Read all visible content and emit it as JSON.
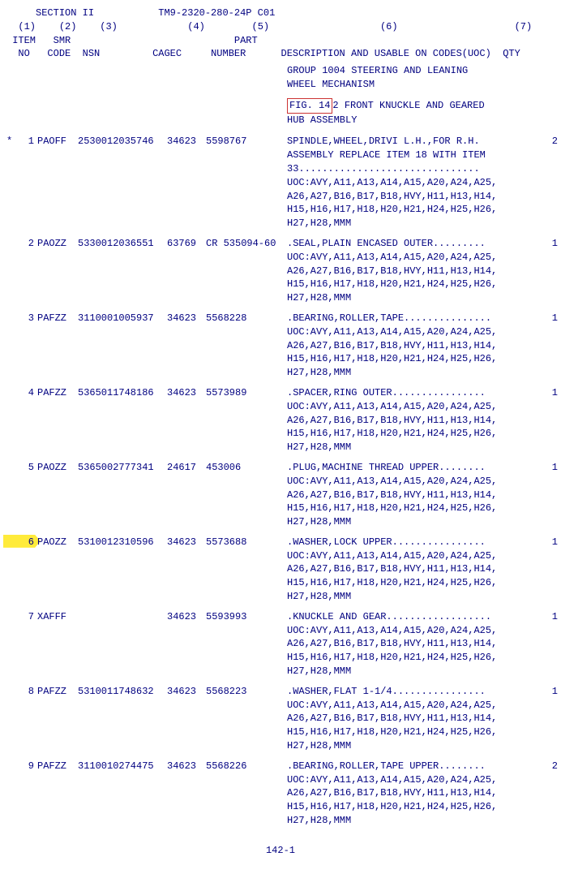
{
  "doc": {
    "section": "SECTION II",
    "tm": "TM9-2320-280-24P C01",
    "page": "142-1"
  },
  "columns": {
    "c1": "(1)",
    "c2": "(2)",
    "c3": "(3)",
    "c4": "(4)",
    "c5": "(5)",
    "c6": "(6)",
    "c7": "(7)",
    "h_item": "ITEM",
    "h_smr": "SMR",
    "h_part": "PART",
    "h_no": "NO",
    "h_code": "CODE",
    "h_nsn": "NSN",
    "h_cagec": "CAGEC",
    "h_number": "NUMBER",
    "h_desc": "DESCRIPTION AND USABLE ON CODES(UOC)",
    "h_qty": "QTY"
  },
  "group": {
    "l1": "GROUP 1004 STEERING AND LEANING",
    "l2": "WHEEL MECHANISM"
  },
  "fig": {
    "box": "FIG. 14",
    "rest": "2 FRONT KNUCKLE AND GEARED",
    "l2": "HUB ASSEMBLY"
  },
  "uoc_block": "UOC:AVY,A11,A13,A14,A15,A20,A24,A25,\nA26,A27,B16,B17,B18,HVY,H11,H13,H14,\nH15,H16,H17,H18,H20,H21,H24,H25,H26,\nH27,H28,MMM",
  "items": [
    {
      "star": "*",
      "no": "1",
      "smr": "PAOFF",
      "nsn": "2530012035746",
      "cagec": "34623",
      "part": "5598767",
      "desc": "SPINDLE,WHEEL,DRIVI  L.H.,FOR R.H.\nASSEMBLY REPLACE ITEM 18 WITH ITEM\n33...............................",
      "qty": "2",
      "hl": false
    },
    {
      "star": "",
      "no": "2",
      "smr": "PAOZZ",
      "nsn": "5330012036551",
      "cagec": "63769",
      "part": "CR 535094-60",
      "desc": ".SEAL,PLAIN ENCASED  OUTER.........",
      "qty": "1",
      "hl": false
    },
    {
      "star": "",
      "no": "3",
      "smr": "PAFZZ",
      "nsn": "3110001005937",
      "cagec": "34623",
      "part": "5568228",
      "desc": ".BEARING,ROLLER,TAPE...............",
      "qty": "1",
      "hl": false
    },
    {
      "star": "",
      "no": "4",
      "smr": "PAFZZ",
      "nsn": "5365011748186",
      "cagec": "34623",
      "part": "5573989",
      "desc": ".SPACER,RING  OUTER................",
      "qty": "1",
      "hl": false
    },
    {
      "star": "",
      "no": "5",
      "smr": "PAOZZ",
      "nsn": "5365002777341",
      "cagec": "24617",
      "part": "453006",
      "desc": ".PLUG,MACHINE THREAD  UPPER........",
      "qty": "1",
      "hl": false
    },
    {
      "star": "",
      "no": "6",
      "smr": "PAOZZ",
      "nsn": "5310012310596",
      "cagec": "34623",
      "part": "5573688",
      "desc": ".WASHER,LOCK  UPPER................",
      "qty": "1",
      "hl": true
    },
    {
      "star": "",
      "no": "7",
      "smr": "XAFFF",
      "nsn": "",
      "cagec": "34623",
      "part": "5593993",
      "desc": ".KNUCKLE AND GEAR..................",
      "qty": "1",
      "hl": false
    },
    {
      "star": "",
      "no": "8",
      "smr": "PAFZZ",
      "nsn": "5310011748632",
      "cagec": "34623",
      "part": "5568223",
      "desc": ".WASHER,FLAT  1-1/4................",
      "qty": "1",
      "hl": false
    },
    {
      "star": "",
      "no": "9",
      "smr": "PAFZZ",
      "nsn": "3110010274475",
      "cagec": "34623",
      "part": "5568226",
      "desc": ".BEARING,ROLLER,TAPE  UPPER........",
      "qty": "2",
      "hl": false
    }
  ]
}
